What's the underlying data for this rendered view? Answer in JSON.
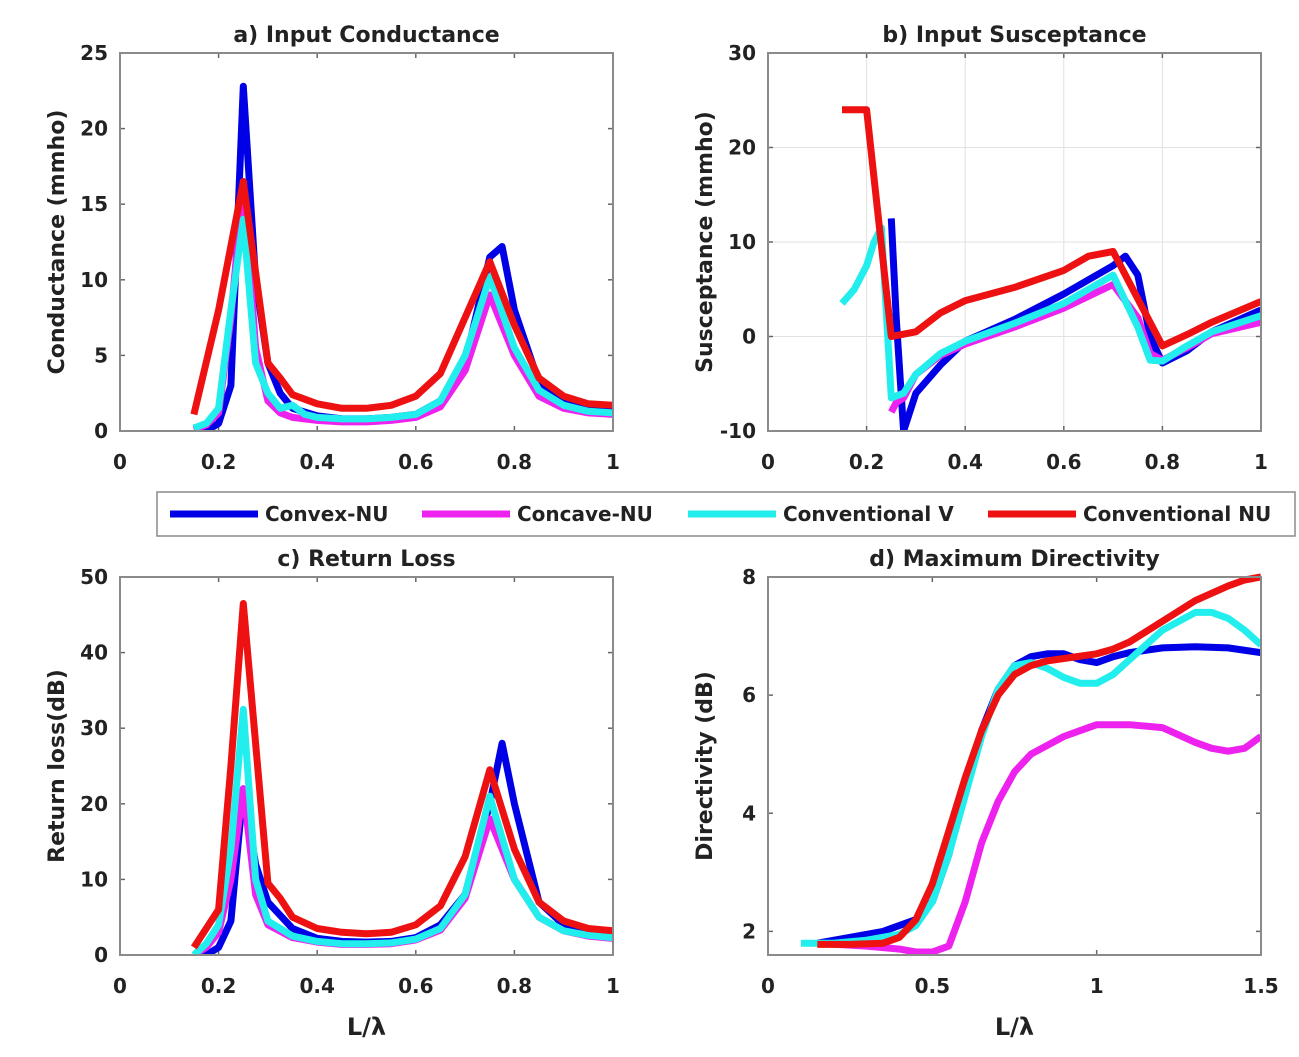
{
  "legend": [
    {
      "name": "Convex-NU",
      "color": "#0000e6"
    },
    {
      "name": "Concave-NU",
      "color": "#ee22ee"
    },
    {
      "name": "Conventional V",
      "color": "#22eeee"
    },
    {
      "name": "Conventional NU",
      "color": "#ee1111"
    }
  ],
  "chart_data": [
    {
      "id": "a",
      "type": "line",
      "title": "a) Input Conductance",
      "xlabel": "",
      "ylabel": "Conductance (mmho)",
      "xlim": [
        0,
        1
      ],
      "ylim": [
        0,
        25
      ],
      "xticks": [
        0,
        0.2,
        0.4,
        0.6,
        0.8,
        1
      ],
      "xtick_labels": [
        "0",
        "0.2",
        "0.4",
        "0.6",
        "0.8",
        "1"
      ],
      "yticks": [
        0,
        5,
        10,
        15,
        20,
        25
      ],
      "ytick_labels": [
        "0",
        "5",
        "10",
        "15",
        "20",
        "25"
      ],
      "grid": false,
      "series": [
        {
          "name": "Convex-NU",
          "x": [
            0.15,
            0.175,
            0.2,
            0.225,
            0.25,
            0.275,
            0.3,
            0.325,
            0.35,
            0.4,
            0.45,
            0.5,
            0.55,
            0.6,
            0.65,
            0.7,
            0.75,
            0.775,
            0.8,
            0.85,
            0.9,
            0.95,
            1.0
          ],
          "y": [
            0,
            0,
            0.5,
            3,
            22.8,
            10,
            4.5,
            2.5,
            1.5,
            1.0,
            0.8,
            0.8,
            0.9,
            1.1,
            2.0,
            4.5,
            11.5,
            12.2,
            8,
            3.2,
            2.0,
            1.6,
            1.4
          ]
        },
        {
          "name": "Concave-NU",
          "x": [
            0.15,
            0.175,
            0.2,
            0.225,
            0.25,
            0.275,
            0.3,
            0.325,
            0.35,
            0.4,
            0.45,
            0.5,
            0.55,
            0.6,
            0.65,
            0.7,
            0.75,
            0.8,
            0.85,
            0.9,
            0.95,
            1.0
          ],
          "y": [
            0.1,
            0.4,
            1.2,
            7.5,
            16.5,
            5.5,
            2.0,
            1.2,
            0.9,
            0.7,
            0.6,
            0.6,
            0.7,
            0.9,
            1.6,
            4.0,
            9.0,
            5.0,
            2.3,
            1.5,
            1.2,
            1.1
          ]
        },
        {
          "name": "Conventional V",
          "x": [
            0.15,
            0.175,
            0.2,
            0.225,
            0.25,
            0.275,
            0.3,
            0.325,
            0.35,
            0.375,
            0.4,
            0.45,
            0.5,
            0.55,
            0.6,
            0.65,
            0.7,
            0.75,
            0.8,
            0.85,
            0.9,
            0.95,
            1.0
          ],
          "y": [
            0.2,
            0.5,
            1.5,
            8.0,
            14.0,
            4.5,
            2.5,
            1.5,
            1.7,
            1.1,
            0.9,
            0.8,
            0.8,
            0.9,
            1.1,
            2.0,
            5.0,
            10.2,
            5.5,
            2.7,
            1.7,
            1.3,
            1.2
          ]
        },
        {
          "name": "Conventional NU",
          "x": [
            0.15,
            0.2,
            0.25,
            0.3,
            0.325,
            0.35,
            0.4,
            0.45,
            0.5,
            0.55,
            0.6,
            0.65,
            0.7,
            0.75,
            0.8,
            0.85,
            0.9,
            0.95,
            1.0
          ],
          "y": [
            1.1,
            8.0,
            16.5,
            4.5,
            3.5,
            2.4,
            1.8,
            1.5,
            1.5,
            1.7,
            2.3,
            3.8,
            7.5,
            11.2,
            7.0,
            3.5,
            2.3,
            1.8,
            1.7
          ]
        }
      ]
    },
    {
      "id": "b",
      "type": "line",
      "title": "b) Input Susceptance",
      "xlabel": "",
      "ylabel": "Susceptance (mmho)",
      "xlim": [
        0,
        1
      ],
      "ylim": [
        -10,
        30
      ],
      "xticks": [
        0,
        0.2,
        0.4,
        0.6,
        0.8,
        1
      ],
      "xtick_labels": [
        "0",
        "0.2",
        "0.4",
        "0.6",
        "0.8",
        "1"
      ],
      "yticks": [
        -10,
        0,
        10,
        20,
        30
      ],
      "ytick_labels": [
        "-10",
        "0",
        "10",
        "20",
        "30"
      ],
      "grid": true,
      "series": [
        {
          "name": "Convex-NU",
          "x": [
            0.25,
            0.26,
            0.275,
            0.3,
            0.35,
            0.4,
            0.5,
            0.6,
            0.7,
            0.725,
            0.75,
            0.775,
            0.8,
            0.85,
            0.9,
            1.0
          ],
          "y": [
            12.5,
            2,
            -10,
            -6,
            -3,
            -0.5,
            1.8,
            4.5,
            7.5,
            8.5,
            6.5,
            0,
            -2.8,
            -1.5,
            0.5,
            2.8
          ]
        },
        {
          "name": "Concave-NU",
          "x": [
            0.25,
            0.26,
            0.275,
            0.3,
            0.35,
            0.4,
            0.5,
            0.6,
            0.7,
            0.75,
            0.775,
            0.8,
            0.85,
            0.9,
            1.0
          ],
          "y": [
            -8,
            -7,
            -6.5,
            -4,
            -2,
            -0.8,
            1.0,
            3.0,
            5.5,
            2,
            -1.8,
            -2.5,
            -1.2,
            0.3,
            1.5
          ]
        },
        {
          "name": "Conventional V",
          "x": [
            0.15,
            0.175,
            0.2,
            0.215,
            0.23,
            0.25,
            0.275,
            0.3,
            0.35,
            0.4,
            0.5,
            0.6,
            0.7,
            0.75,
            0.775,
            0.8,
            0.85,
            0.9,
            1.0
          ],
          "y": [
            3.5,
            5,
            7.5,
            10,
            11.5,
            -6.5,
            -6,
            -4,
            -1.8,
            -0.5,
            1.4,
            3.5,
            6.5,
            1,
            -2.5,
            -2.6,
            -1,
            0.5,
            2.2
          ]
        },
        {
          "name": "Conventional NU",
          "x": [
            0.15,
            0.2,
            0.25,
            0.3,
            0.35,
            0.4,
            0.5,
            0.6,
            0.65,
            0.7,
            0.8,
            0.85,
            0.9,
            1.0
          ],
          "y": [
            24,
            24,
            0,
            0.5,
            2.5,
            3.8,
            5.2,
            7,
            8.5,
            9,
            -1,
            0.2,
            1.5,
            3.7
          ]
        }
      ]
    },
    {
      "id": "c",
      "type": "line",
      "title": "c) Return Loss",
      "xlabel": "L/λ",
      "ylabel": "Return loss(dB)",
      "xlim": [
        0,
        1
      ],
      "ylim": [
        0,
        50
      ],
      "xticks": [
        0,
        0.2,
        0.4,
        0.6,
        0.8,
        1
      ],
      "xtick_labels": [
        "0",
        "0.2",
        "0.4",
        "0.6",
        "0.8",
        "1"
      ],
      "yticks": [
        0,
        10,
        20,
        30,
        40,
        50
      ],
      "ytick_labels": [
        "0",
        "10",
        "20",
        "30",
        "40",
        "50"
      ],
      "grid": false,
      "series": [
        {
          "name": "Convex-NU",
          "x": [
            0.15,
            0.175,
            0.2,
            0.225,
            0.25,
            0.275,
            0.3,
            0.35,
            0.4,
            0.45,
            0.5,
            0.55,
            0.6,
            0.65,
            0.7,
            0.75,
            0.775,
            0.8,
            0.85,
            0.9,
            0.95,
            1.0
          ],
          "y": [
            0,
            0,
            1,
            4.5,
            22,
            12,
            7,
            3.5,
            2.2,
            1.8,
            1.7,
            1.8,
            2.3,
            4,
            8,
            20,
            28,
            20,
            7,
            4,
            3.2,
            2.8
          ]
        },
        {
          "name": "Concave-NU",
          "x": [
            0.15,
            0.175,
            0.2,
            0.225,
            0.25,
            0.275,
            0.3,
            0.35,
            0.4,
            0.45,
            0.5,
            0.55,
            0.6,
            0.65,
            0.7,
            0.75,
            0.8,
            0.85,
            0.9,
            0.95,
            1.0
          ],
          "y": [
            0,
            1,
            3,
            10,
            22,
            8,
            4,
            2.3,
            1.7,
            1.4,
            1.4,
            1.5,
            2,
            3.3,
            7.5,
            18,
            10,
            5,
            3.2,
            2.5,
            2.2
          ]
        },
        {
          "name": "Conventional V",
          "x": [
            0.15,
            0.175,
            0.2,
            0.225,
            0.25,
            0.275,
            0.3,
            0.35,
            0.4,
            0.45,
            0.5,
            0.55,
            0.6,
            0.65,
            0.7,
            0.75,
            0.8,
            0.85,
            0.9,
            0.95,
            1.0
          ],
          "y": [
            0,
            1.5,
            4,
            14,
            32.5,
            10,
            4.5,
            2.5,
            1.8,
            1.5,
            1.5,
            1.6,
            2.1,
            3.5,
            8,
            21,
            10,
            5,
            3.2,
            2.6,
            2.3
          ]
        },
        {
          "name": "Conventional NU",
          "x": [
            0.15,
            0.2,
            0.225,
            0.25,
            0.275,
            0.3,
            0.325,
            0.35,
            0.4,
            0.45,
            0.5,
            0.55,
            0.6,
            0.65,
            0.7,
            0.75,
            0.8,
            0.85,
            0.9,
            0.95,
            1.0
          ],
          "y": [
            1,
            6,
            25,
            46.5,
            28,
            9.5,
            7.5,
            5,
            3.5,
            3,
            2.8,
            3,
            4,
            6.5,
            13,
            24.5,
            14,
            7,
            4.5,
            3.5,
            3.2
          ]
        }
      ]
    },
    {
      "id": "d",
      "type": "line",
      "title": "d) Maximum Directivity",
      "xlabel": "L/λ",
      "ylabel": "Directivity (dB)",
      "xlim": [
        0,
        1.5
      ],
      "ylim": [
        1.6,
        8
      ],
      "xticks": [
        0,
        0.5,
        1,
        1.5
      ],
      "xtick_labels": [
        "0",
        "0.5",
        "1",
        "1.5"
      ],
      "yticks": [
        2,
        4,
        6,
        8
      ],
      "ytick_labels": [
        "2",
        "4",
        "6",
        "8"
      ],
      "grid": false,
      "series": [
        {
          "name": "Convex-NU",
          "x": [
            0.15,
            0.25,
            0.35,
            0.45,
            0.5,
            0.55,
            0.6,
            0.65,
            0.7,
            0.75,
            0.8,
            0.85,
            0.9,
            0.95,
            1.0,
            1.05,
            1.1,
            1.2,
            1.3,
            1.4,
            1.5
          ],
          "y": [
            1.8,
            1.9,
            2.0,
            2.2,
            2.5,
            3.3,
            4.4,
            5.4,
            6.1,
            6.5,
            6.65,
            6.7,
            6.7,
            6.6,
            6.55,
            6.65,
            6.72,
            6.8,
            6.82,
            6.8,
            6.72
          ]
        },
        {
          "name": "Concave-NU",
          "x": [
            0.15,
            0.3,
            0.4,
            0.45,
            0.5,
            0.55,
            0.6,
            0.65,
            0.7,
            0.75,
            0.8,
            0.85,
            0.9,
            0.95,
            1.0,
            1.05,
            1.1,
            1.2,
            1.3,
            1.35,
            1.4,
            1.45,
            1.5
          ],
          "y": [
            1.8,
            1.75,
            1.7,
            1.65,
            1.65,
            1.75,
            2.5,
            3.5,
            4.2,
            4.7,
            5.0,
            5.15,
            5.3,
            5.4,
            5.5,
            5.5,
            5.5,
            5.45,
            5.2,
            5.1,
            5.05,
            5.1,
            5.3
          ]
        },
        {
          "name": "Conventional V",
          "x": [
            0.1,
            0.2,
            0.3,
            0.4,
            0.45,
            0.5,
            0.55,
            0.6,
            0.65,
            0.7,
            0.75,
            0.8,
            0.85,
            0.9,
            0.95,
            1.0,
            1.05,
            1.1,
            1.2,
            1.3,
            1.35,
            1.4,
            1.45,
            1.5
          ],
          "y": [
            1.8,
            1.8,
            1.85,
            1.95,
            2.1,
            2.5,
            3.3,
            4.3,
            5.3,
            6.1,
            6.5,
            6.55,
            6.45,
            6.3,
            6.2,
            6.2,
            6.35,
            6.6,
            7.1,
            7.4,
            7.4,
            7.3,
            7.1,
            6.85
          ]
        },
        {
          "name": "Conventional NU",
          "x": [
            0.15,
            0.25,
            0.35,
            0.4,
            0.45,
            0.5,
            0.55,
            0.6,
            0.65,
            0.7,
            0.75,
            0.8,
            0.85,
            0.9,
            1.0,
            1.05,
            1.1,
            1.2,
            1.3,
            1.4,
            1.45,
            1.5
          ],
          "y": [
            1.78,
            1.78,
            1.8,
            1.9,
            2.2,
            2.8,
            3.7,
            4.6,
            5.4,
            6.0,
            6.35,
            6.5,
            6.58,
            6.62,
            6.7,
            6.78,
            6.9,
            7.25,
            7.6,
            7.85,
            7.95,
            8.0
          ]
        }
      ]
    }
  ]
}
